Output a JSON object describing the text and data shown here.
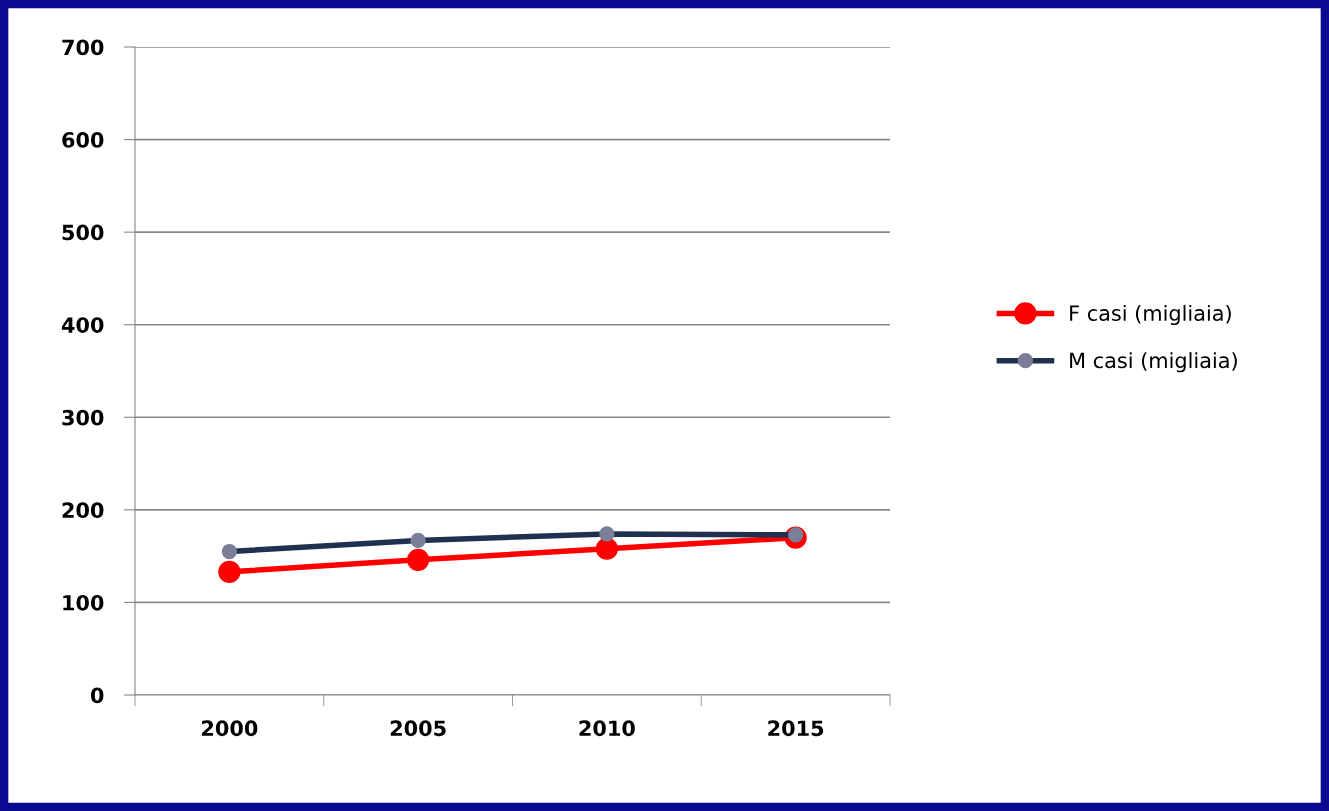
{
  "chart_data": {
    "type": "line",
    "categories": [
      "2000",
      "2005",
      "2010",
      "2015"
    ],
    "series": [
      {
        "name": "F casi (migliaia)",
        "color": "#ff0000",
        "values": [
          133,
          146,
          158,
          170
        ]
      },
      {
        "name": "M casi (migliaia)",
        "color": "#1f3050",
        "values": [
          155,
          167,
          174,
          173
        ]
      }
    ],
    "ylim": [
      0,
      700
    ],
    "yticks": [
      0,
      100,
      200,
      300,
      400,
      500,
      600,
      700
    ],
    "grid": "y",
    "legend": "right",
    "marker": "circle",
    "line_style": "solid"
  }
}
